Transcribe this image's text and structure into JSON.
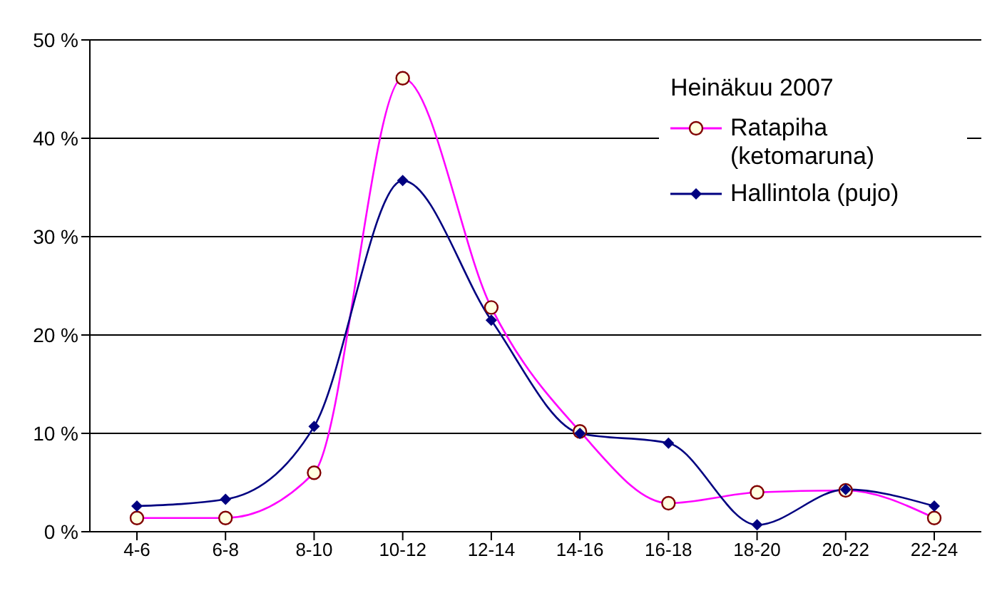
{
  "chart_data": {
    "type": "line",
    "legend_title": "Heinäkuu 2007",
    "categories": [
      "4-6",
      "6-8",
      "8-10",
      "10-12",
      "12-14",
      "14-16",
      "16-18",
      "18-20",
      "20-22",
      "22-24"
    ],
    "series": [
      {
        "name": "Ratapiha (ketomaruna)",
        "color": "#ff00ff",
        "marker": "circle",
        "values": [
          1.4,
          1.4,
          6.0,
          46.1,
          22.8,
          10.2,
          2.9,
          4.0,
          4.2,
          1.4
        ]
      },
      {
        "name": "Hallintola (pujo)",
        "color": "#000080",
        "marker": "diamond",
        "values": [
          2.6,
          3.3,
          10.7,
          35.7,
          21.5,
          10.0,
          9.0,
          0.7,
          4.3,
          2.6
        ]
      }
    ],
    "ylim": [
      0,
      50
    ],
    "yticks": [
      {
        "value": 0,
        "label": "0 %"
      },
      {
        "value": 10,
        "label": "10 %"
      },
      {
        "value": 20,
        "label": "20 %"
      },
      {
        "value": 30,
        "label": "30 %"
      },
      {
        "value": 40,
        "label": "40 %"
      },
      {
        "value": 50,
        "label": "50 %"
      }
    ],
    "grid": "y",
    "legend": "top right",
    "line_style": "solid"
  }
}
